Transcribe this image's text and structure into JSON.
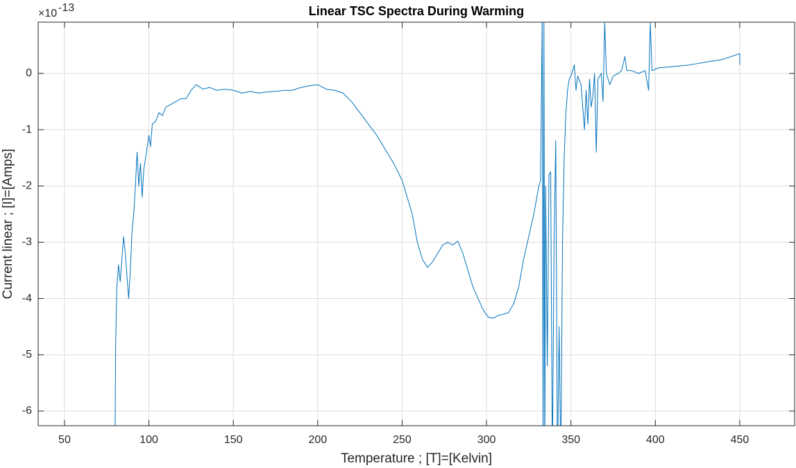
{
  "chart_data": {
    "type": "line",
    "title": "Linear TSC Spectra During Warming",
    "x_label": "Temperature ; [T]=[Kelvin]",
    "y_label": "Current linear ; [I]=[Amps]",
    "y_exponent_base": "×10",
    "y_exponent": "-13",
    "x": [
      80,
      80.3,
      81,
      82,
      83,
      84,
      85,
      86,
      87,
      88,
      89,
      90,
      91,
      92,
      93,
      94,
      95,
      96,
      97,
      98,
      99,
      100,
      101,
      102,
      104,
      106,
      108,
      110,
      113,
      116,
      119,
      122,
      125,
      128,
      132,
      136,
      140,
      145,
      150,
      155,
      160,
      165,
      170,
      175,
      180,
      185,
      190,
      195,
      200,
      205,
      210,
      215,
      220,
      225,
      230,
      235,
      240,
      245,
      250,
      253,
      256,
      259,
      262,
      265,
      268,
      271,
      274,
      277,
      280,
      283,
      286,
      289,
      292,
      295,
      298,
      301,
      304,
      307,
      310,
      313,
      316,
      319,
      322,
      325,
      328,
      331,
      332,
      333,
      333.5,
      334,
      334.5,
      335,
      336,
      337,
      338,
      339,
      340,
      341,
      342,
      343,
      344,
      345,
      346,
      347,
      348,
      349,
      350,
      352,
      353,
      354,
      356,
      357,
      358,
      359,
      360,
      361,
      362,
      363,
      364,
      365,
      366,
      368,
      369,
      370,
      371,
      373,
      375,
      378,
      380,
      382,
      383,
      386,
      390,
      394,
      396,
      397,
      398,
      402,
      410,
      420,
      430,
      440,
      445,
      450,
      450
    ],
    "series": [
      {
        "name": "I",
        "color": "#0072bd",
        "values": [
          -6.3,
          -4.8,
          -3.8,
          -3.4,
          -3.7,
          -3.3,
          -2.9,
          -3.2,
          -3.6,
          -4.0,
          -3.5,
          -2.8,
          -2.5,
          -2.0,
          -1.4,
          -2.0,
          -1.6,
          -2.2,
          -1.7,
          -1.5,
          -1.3,
          -1.1,
          -1.3,
          -0.9,
          -0.85,
          -0.7,
          -0.75,
          -0.6,
          -0.55,
          -0.5,
          -0.45,
          -0.45,
          -0.3,
          -0.2,
          -0.28,
          -0.25,
          -0.3,
          -0.28,
          -0.3,
          -0.35,
          -0.32,
          -0.35,
          -0.33,
          -0.32,
          -0.3,
          -0.3,
          -0.25,
          -0.22,
          -0.2,
          -0.28,
          -0.3,
          -0.35,
          -0.5,
          -0.7,
          -0.9,
          -1.1,
          -1.35,
          -1.6,
          -1.9,
          -2.2,
          -2.5,
          -3.0,
          -3.3,
          -3.45,
          -3.35,
          -3.2,
          -3.05,
          -3.0,
          -3.05,
          -2.98,
          -3.2,
          -3.5,
          -3.8,
          -4.0,
          -4.2,
          -4.33,
          -4.35,
          -4.3,
          -4.28,
          -4.25,
          -4.1,
          -3.8,
          -3.3,
          -2.9,
          -2.5,
          -2.0,
          -1.9,
          1,
          -7,
          1,
          -7,
          -2.0,
          -5.2,
          -1.8,
          -1.75,
          -7,
          -3.0,
          -1.2,
          -7,
          -4.5,
          -7,
          -3.0,
          -1.5,
          -0.7,
          -0.3,
          -0.1,
          -0.05,
          0.15,
          -0.3,
          -0.05,
          -0.2,
          -0.6,
          -1.0,
          -0.3,
          -0.9,
          -0.1,
          -0.6,
          -0.4,
          0,
          -1.4,
          -0.1,
          0.0,
          -0.5,
          0.9,
          0,
          -0.2,
          -0.05,
          0.0,
          0.05,
          0.3,
          0.05,
          0.05,
          0.0,
          0.05,
          -0.3,
          0.9,
          0.05,
          0.1,
          0.12,
          0.15,
          0.2,
          0.25,
          0.3,
          0.35,
          0.15
        ]
      }
    ],
    "xlim": [
      34.4,
      482.5
    ],
    "ylim": [
      -6.26,
      0.91
    ],
    "xticks": [
      50,
      100,
      150,
      200,
      250,
      300,
      350,
      400,
      450
    ],
    "yticks": [
      -6,
      -5,
      -4,
      -3,
      -2,
      -1,
      0
    ],
    "grid": true
  }
}
